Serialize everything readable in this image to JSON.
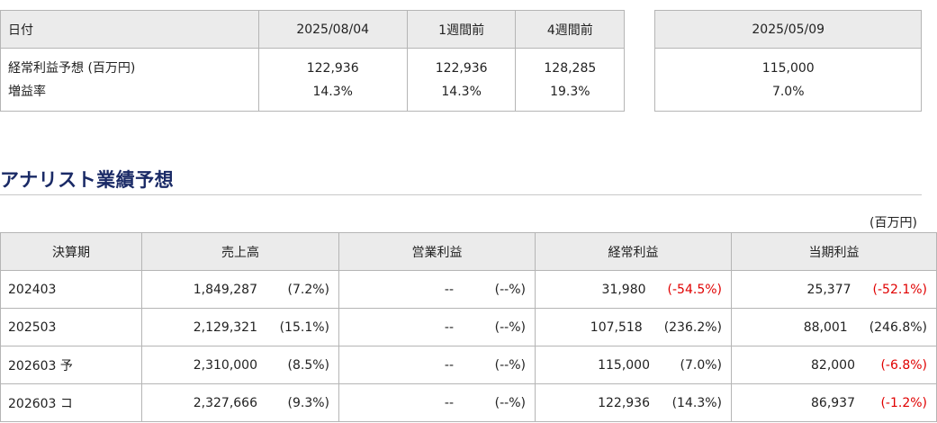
{
  "summary": {
    "headers": {
      "date_label": "日付",
      "d1": "2025/08/04",
      "d2": "1週間前",
      "d3": "4週間前",
      "d4": "2025/05/09"
    },
    "row_label_1": "経常利益予想 (百万円)",
    "row_label_2": "増益率",
    "values": {
      "d1": {
        "profit": "122,936",
        "rate": "14.3%"
      },
      "d2": {
        "profit": "122,936",
        "rate": "14.3%"
      },
      "d3": {
        "profit": "128,285",
        "rate": "19.3%"
      },
      "d4": {
        "profit": "115,000",
        "rate": "7.0%"
      }
    }
  },
  "analyst": {
    "title": "アナリスト業績予想",
    "unit": "(百万円)",
    "headers": {
      "period": "決算期",
      "sales": "売上高",
      "op": "営業利益",
      "ordinary": "経常利益",
      "net": "当期利益"
    },
    "rows": [
      {
        "period": "202403",
        "sales": "1,849,287",
        "sales_pct": "(7.2%)",
        "op": "--",
        "op_pct": "(--%)",
        "ord": "31,980",
        "ord_pct": "(-54.5%)",
        "net": "25,377",
        "net_pct": "(-52.1%)"
      },
      {
        "period": "202503",
        "sales": "2,129,321",
        "sales_pct": "(15.1%)",
        "op": "--",
        "op_pct": "(--%)",
        "ord": "107,518",
        "ord_pct": "(236.2%)",
        "net": "88,001",
        "net_pct": "(246.8%)"
      },
      {
        "period": "202603 予",
        "sales": "2,310,000",
        "sales_pct": "(8.5%)",
        "op": "--",
        "op_pct": "(--%)",
        "ord": "115,000",
        "ord_pct": "(7.0%)",
        "net": "82,000",
        "net_pct": "(-6.8%)"
      },
      {
        "period": "202603 コ",
        "sales": "2,327,666",
        "sales_pct": "(9.3%)",
        "op": "--",
        "op_pct": "(--%)",
        "ord": "122,936",
        "ord_pct": "(14.3%)",
        "net": "86,937",
        "net_pct": "(-1.2%)"
      }
    ],
    "negative_color": "#e00000"
  }
}
